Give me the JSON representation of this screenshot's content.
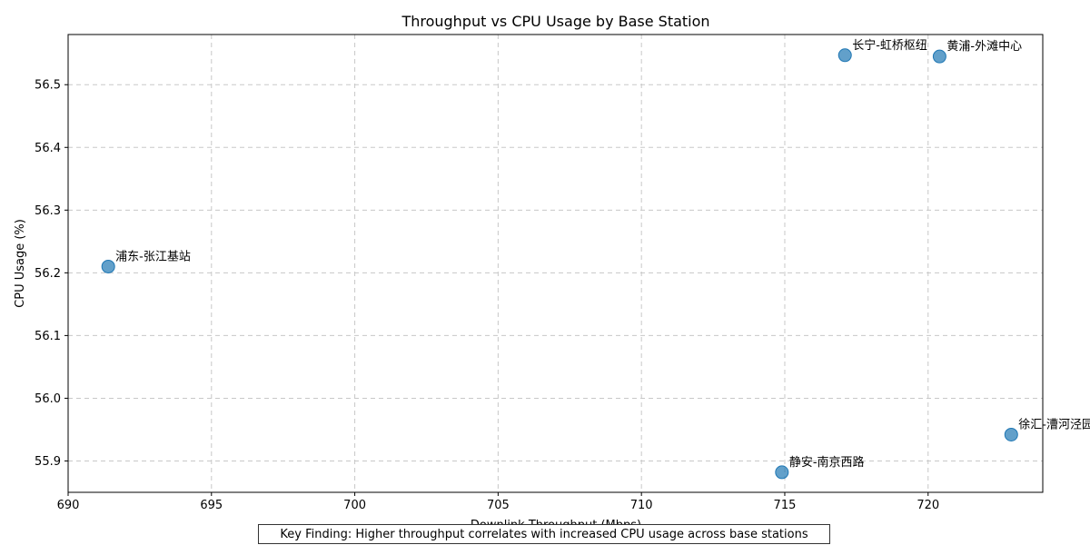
{
  "chart_data": {
    "type": "scatter",
    "title": "Throughput vs CPU Usage by Base Station",
    "xlabel": "Downlink Throughput (Mbps)",
    "ylabel": "CPU Usage (%)",
    "xlim": [
      690.0,
      724.0
    ],
    "ylim": [
      55.85,
      56.58
    ],
    "xticks": [
      690,
      695,
      700,
      705,
      710,
      715,
      720
    ],
    "yticks": [
      55.9,
      56.0,
      56.1,
      56.2,
      56.3,
      56.4,
      56.5
    ],
    "grid": true,
    "marker_color": "#1f77b4",
    "points": [
      {
        "label": "浦东-张江基站",
        "x": 691.4,
        "y": 56.21
      },
      {
        "label": "静安-南京西路",
        "x": 714.9,
        "y": 55.882
      },
      {
        "label": "徐汇-漕河泾园区",
        "x": 722.9,
        "y": 55.942
      },
      {
        "label": "长宁-虹桥枢纽",
        "x": 717.1,
        "y": 56.547
      },
      {
        "label": "黄浦-外滩中心",
        "x": 720.4,
        "y": 56.545
      }
    ]
  },
  "annotation": {
    "text": "Key Finding: Higher throughput correlates with increased CPU usage across base stations"
  }
}
